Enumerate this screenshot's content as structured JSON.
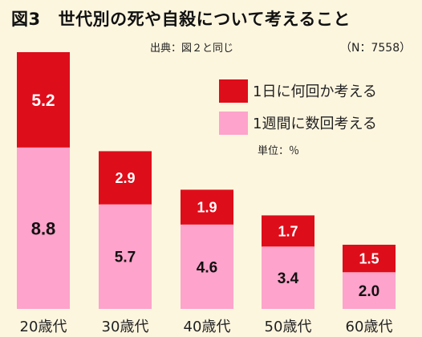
{
  "title": {
    "fig": "図3",
    "text": "世代別の死や自殺について考えること"
  },
  "source": "出典：図２と同じ",
  "sample_size": "（N：7558）",
  "unit": "単位：％",
  "colors": {
    "daily": "#de0d1a",
    "weekly": "#fea3cb",
    "background": "#fdf6df"
  },
  "chart_data": {
    "type": "bar",
    "stacked": true,
    "categories": [
      "20歳代",
      "30歳代",
      "40歳代",
      "50歳代",
      "60歳代"
    ],
    "series": [
      {
        "name": "1週間に数回考える",
        "values": [
          8.8,
          5.7,
          4.6,
          3.4,
          2.0
        ],
        "labels": [
          "8.8",
          "5.7",
          "4.6",
          "3.4",
          "2.0"
        ],
        "color": "#fea3cb"
      },
      {
        "name": "1日に何回か考える",
        "values": [
          5.2,
          2.9,
          1.9,
          1.7,
          1.5
        ],
        "labels": [
          "5.2",
          "2.9",
          "1.9",
          "1.7",
          "1.5"
        ],
        "color": "#de0d1a"
      }
    ],
    "legend_position": "top-right",
    "grid": false
  }
}
